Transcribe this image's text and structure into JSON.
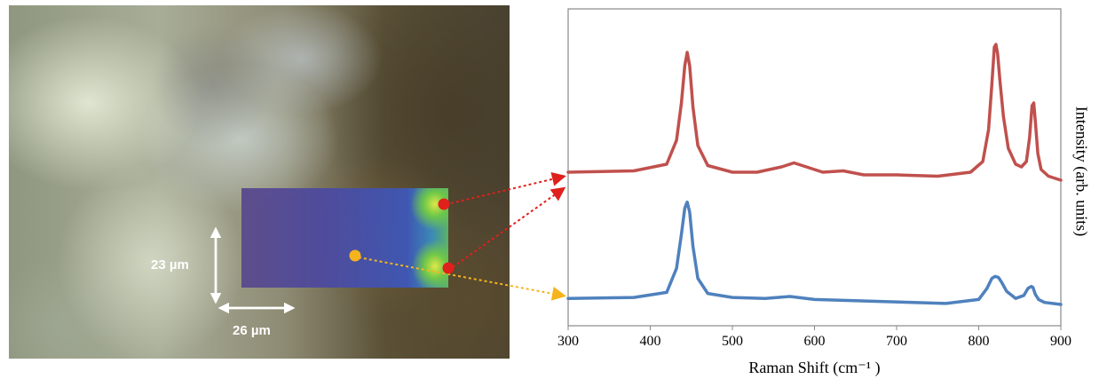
{
  "micrograph": {
    "scale_y_label": "23 µm",
    "scale_x_label": "26 µm",
    "point_colors": {
      "red": "#e0201c",
      "orange": "#f5b41e"
    }
  },
  "chart_data": {
    "type": "line",
    "xlabel": "Raman Shift (cm⁻¹ )",
    "ylabel": "Intensity (arb. units)",
    "xlim": [
      300,
      900
    ],
    "xticks": [
      "300",
      "400",
      "500",
      "600",
      "700",
      "800",
      "900"
    ],
    "yticks_shown": false,
    "grid": false,
    "series": [
      {
        "color": "#c0504d",
        "x": [
          300,
          380,
          420,
          432,
          438,
          442,
          445,
          448,
          452,
          458,
          470,
          500,
          530,
          560,
          575,
          590,
          610,
          635,
          660,
          700,
          750,
          790,
          805,
          812,
          816,
          819,
          821,
          823,
          826,
          830,
          836,
          845,
          852,
          858,
          862,
          865,
          867,
          869,
          872,
          876,
          885,
          900
        ],
        "y": [
          0.06,
          0.07,
          0.12,
          0.3,
          0.58,
          0.86,
          0.96,
          0.86,
          0.55,
          0.26,
          0.11,
          0.06,
          0.06,
          0.1,
          0.13,
          0.1,
          0.06,
          0.07,
          0.04,
          0.04,
          0.03,
          0.06,
          0.14,
          0.38,
          0.72,
          1.0,
          1.02,
          0.95,
          0.74,
          0.48,
          0.24,
          0.12,
          0.1,
          0.14,
          0.32,
          0.56,
          0.58,
          0.44,
          0.2,
          0.08,
          0.03,
          0.0
        ]
      },
      {
        "color": "#4f81bd",
        "x": [
          300,
          380,
          420,
          432,
          438,
          442,
          445,
          448,
          452,
          458,
          470,
          500,
          540,
          570,
          600,
          640,
          680,
          720,
          760,
          800,
          810,
          816,
          820,
          824,
          828,
          834,
          845,
          855,
          860,
          864,
          866,
          869,
          873,
          880,
          900
        ],
        "y": [
          0.06,
          0.07,
          0.12,
          0.36,
          0.7,
          0.96,
          1.02,
          0.92,
          0.58,
          0.26,
          0.11,
          0.07,
          0.06,
          0.08,
          0.05,
          0.04,
          0.03,
          0.02,
          0.01,
          0.05,
          0.16,
          0.26,
          0.28,
          0.27,
          0.22,
          0.13,
          0.06,
          0.09,
          0.16,
          0.18,
          0.17,
          0.1,
          0.05,
          0.02,
          0.0
        ]
      }
    ]
  }
}
